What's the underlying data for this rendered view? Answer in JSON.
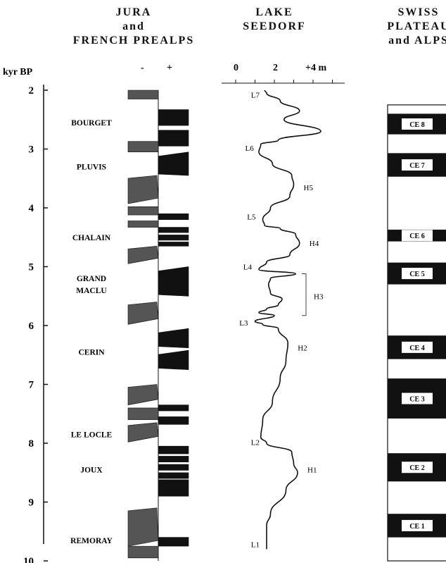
{
  "headers": {
    "jura": [
      "JURA",
      "and",
      "FRENCH PREALPS"
    ],
    "seedorf": [
      "LAKE",
      "SEEDORF"
    ],
    "swiss": [
      "SWISS",
      "PLATEAU",
      "and ALPS"
    ]
  },
  "axis": {
    "unit_label": "kyr BP",
    "ticks": [
      "2",
      "3",
      "4",
      "5",
      "6",
      "7",
      "8",
      "9",
      "10"
    ],
    "jura_minus": "-",
    "jura_plus": "+",
    "level_ticks": [
      "0",
      "2",
      "+4 m"
    ]
  },
  "jura_phases": [
    {
      "label": "BOURGET",
      "age": 2.55
    },
    {
      "label": "PLUVIS",
      "age": 3.3
    },
    {
      "label": "CHALAIN",
      "age": 4.5
    },
    {
      "label": "GRAND",
      "age": 5.2
    },
    {
      "label": "MACLU",
      "age": 5.4
    },
    {
      "label": "CERIN",
      "age": 6.45
    },
    {
      "label": "LE LOCLE",
      "age": 7.85
    },
    {
      "label": "JOUX",
      "age": 8.45
    },
    {
      "label": "REMORAY",
      "age": 9.65
    }
  ],
  "jura_blocks": [
    {
      "side": "minus",
      "from": 2.0,
      "to": 2.15
    },
    {
      "side": "plus",
      "from": 2.33,
      "to": 2.6
    },
    {
      "side": "plus",
      "from": 2.68,
      "to": 2.95
    },
    {
      "side": "minus",
      "from": 2.87,
      "to": 3.05
    },
    {
      "side": "plus",
      "from": 3.05,
      "to": 3.45
    },
    {
      "side": "minus",
      "from": 3.45,
      "to": 3.93
    },
    {
      "side": "minus",
      "from": 3.98,
      "to": 4.12
    },
    {
      "side": "plus",
      "from": 4.1,
      "to": 4.2
    },
    {
      "side": "minus",
      "from": 4.22,
      "to": 4.33
    },
    {
      "side": "plus",
      "from": 4.33,
      "to": 4.42
    },
    {
      "side": "plus",
      "from": 4.46,
      "to": 4.55
    },
    {
      "side": "plus",
      "from": 4.58,
      "to": 4.65
    },
    {
      "side": "minus",
      "from": 4.65,
      "to": 4.95
    },
    {
      "side": "plus",
      "from": 5.0,
      "to": 5.5
    },
    {
      "side": "minus",
      "from": 5.6,
      "to": 5.98
    },
    {
      "side": "plus",
      "from": 6.05,
      "to": 6.38
    },
    {
      "side": "plus",
      "from": 6.42,
      "to": 6.75
    },
    {
      "side": "minus",
      "from": 7.0,
      "to": 7.35
    },
    {
      "side": "plus",
      "from": 7.35,
      "to": 7.45
    },
    {
      "side": "minus",
      "from": 7.4,
      "to": 7.6
    },
    {
      "side": "plus",
      "from": 7.55,
      "to": 7.68
    },
    {
      "side": "minus",
      "from": 7.65,
      "to": 7.98
    },
    {
      "side": "plus",
      "from": 8.05,
      "to": 8.18
    },
    {
      "side": "plus",
      "from": 8.22,
      "to": 8.32
    },
    {
      "side": "plus",
      "from": 8.36,
      "to": 8.46
    },
    {
      "side": "plus",
      "from": 8.5,
      "to": 8.6
    },
    {
      "side": "plus",
      "from": 8.62,
      "to": 8.9
    },
    {
      "side": "minus",
      "from": 9.1,
      "to": 9.75
    },
    {
      "side": "plus",
      "from": 9.6,
      "to": 9.75
    },
    {
      "side": "minus",
      "from": 9.75,
      "to": 9.95
    }
  ],
  "seedorf_curve": [
    [
      1.5,
      2.0
    ],
    [
      1.6,
      2.05
    ],
    [
      2.3,
      2.18
    ],
    [
      3.3,
      2.35
    ],
    [
      2.5,
      2.5
    ],
    [
      4.4,
      2.7
    ],
    [
      2.2,
      2.85
    ],
    [
      1.3,
      2.92
    ],
    [
      1.2,
      3.05
    ],
    [
      1.9,
      3.25
    ],
    [
      2.9,
      3.45
    ],
    [
      3.0,
      3.6
    ],
    [
      2.8,
      3.8
    ],
    [
      1.8,
      4.0
    ],
    [
      1.4,
      4.2
    ],
    [
      1.5,
      4.3
    ],
    [
      2.3,
      4.35
    ],
    [
      3.1,
      4.45
    ],
    [
      3.3,
      4.6
    ],
    [
      2.8,
      4.8
    ],
    [
      1.6,
      4.92
    ],
    [
      1.2,
      5.05
    ],
    [
      3.1,
      5.12
    ],
    [
      1.8,
      5.2
    ],
    [
      1.7,
      5.3
    ],
    [
      1.8,
      5.45
    ],
    [
      2.4,
      5.55
    ],
    [
      2.2,
      5.65
    ],
    [
      1.6,
      5.72
    ],
    [
      1.2,
      5.78
    ],
    [
      2.0,
      5.83
    ],
    [
      1.0,
      5.93
    ],
    [
      1.4,
      5.98
    ],
    [
      2.2,
      6.05
    ],
    [
      2.7,
      6.3
    ],
    [
      2.6,
      6.6
    ],
    [
      2.3,
      6.9
    ],
    [
      1.9,
      7.3
    ],
    [
      1.4,
      7.6
    ],
    [
      1.3,
      7.9
    ],
    [
      1.6,
      8.0
    ],
    [
      2.9,
      8.15
    ],
    [
      3.0,
      8.35
    ],
    [
      3.2,
      8.5
    ],
    [
      2.6,
      8.8
    ],
    [
      1.8,
      9.2
    ],
    [
      1.6,
      9.4
    ],
    [
      1.6,
      9.8
    ]
  ],
  "seedorf_labels": [
    {
      "label": "L7",
      "age": 2.08,
      "side": "left"
    },
    {
      "label": "L6",
      "age": 2.98,
      "side": "left"
    },
    {
      "label": "H5",
      "age": 3.65,
      "side": "right"
    },
    {
      "label": "L5",
      "age": 4.15,
      "side": "left"
    },
    {
      "label": "H4",
      "age": 4.6,
      "side": "right"
    },
    {
      "label": "L4",
      "age": 5.0,
      "side": "left"
    },
    {
      "label": "H3",
      "age": 5.5,
      "side": "right"
    },
    {
      "label": "L3",
      "age": 5.95,
      "side": "left"
    },
    {
      "label": "H2",
      "age": 6.38,
      "side": "right"
    },
    {
      "label": "L2",
      "age": 7.98,
      "side": "left"
    },
    {
      "label": "H1",
      "age": 8.45,
      "side": "right"
    },
    {
      "label": "L1",
      "age": 9.72,
      "side": "left"
    }
  ],
  "ce_events": [
    {
      "label": "CE 8",
      "from": 2.4,
      "to": 2.75
    },
    {
      "label": "CE 7",
      "from": 3.07,
      "to": 3.47
    },
    {
      "label": "CE 6",
      "from": 4.37,
      "to": 4.57
    },
    {
      "label": "CE 5",
      "from": 4.93,
      "to": 5.3
    },
    {
      "label": "CE 4",
      "from": 6.17,
      "to": 6.57
    },
    {
      "label": "CE 3",
      "from": 6.9,
      "to": 7.58
    },
    {
      "label": "CE 2",
      "from": 8.17,
      "to": 8.65
    },
    {
      "label": "CE 1",
      "from": 9.2,
      "to": 9.6
    }
  ],
  "ce_column_range": [
    2.25,
    10.0
  ]
}
